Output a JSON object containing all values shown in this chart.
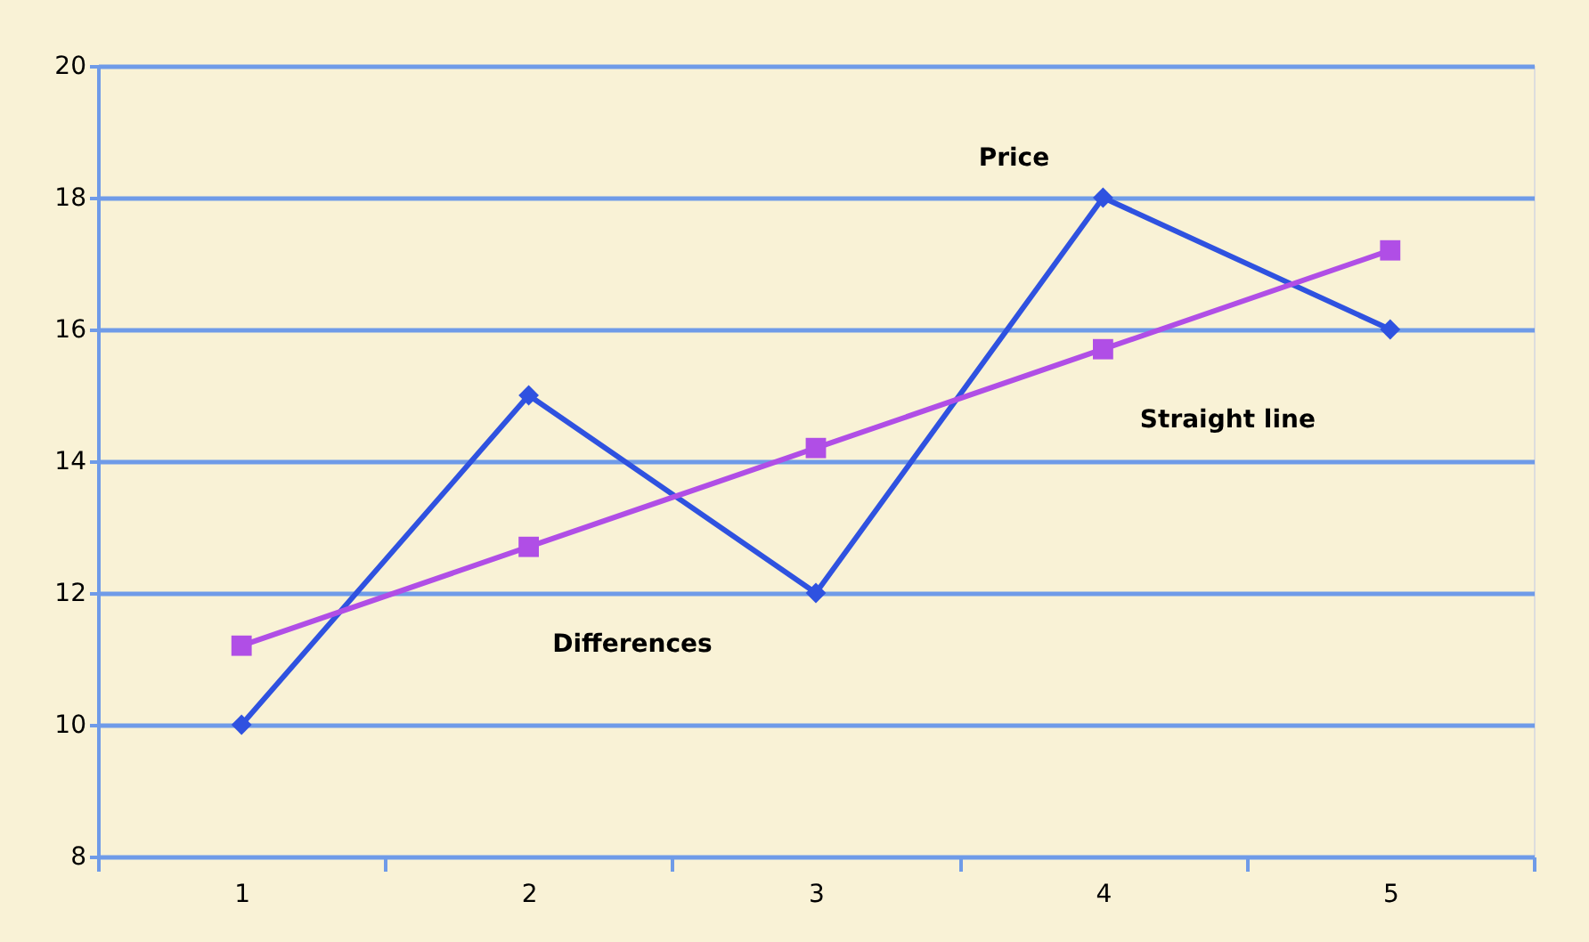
{
  "chart_data": {
    "type": "line",
    "categories": [
      "1",
      "2",
      "3",
      "4",
      "5"
    ],
    "series": [
      {
        "name": "Price",
        "color": "#2f52e0",
        "values": [
          10,
          15,
          12,
          18,
          16
        ],
        "marker": "diamond"
      },
      {
        "name": "Straight line",
        "color": "#b04ee6",
        "values": [
          11.2,
          12.7,
          14.2,
          15.7,
          17.2
        ],
        "marker": "square"
      }
    ],
    "ylim": [
      8,
      20
    ],
    "yticks": [
      8,
      10,
      12,
      14,
      16,
      18,
      20
    ],
    "grid": "y",
    "annotations": [
      "Differences"
    ]
  }
}
